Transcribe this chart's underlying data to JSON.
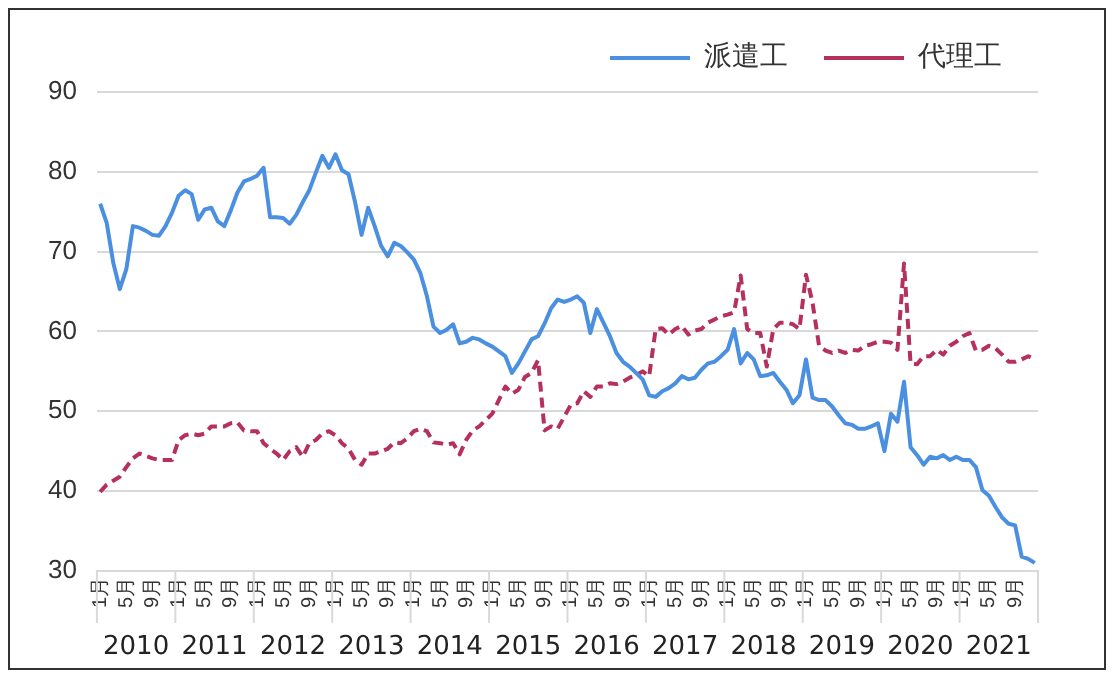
{
  "chart_data": {
    "type": "line",
    "categories": [
      "1月",
      null,
      null,
      null,
      "5月",
      null,
      null,
      null,
      "9月",
      null,
      null,
      null,
      "1月",
      null,
      null,
      null,
      "5月",
      null,
      null,
      null,
      "9月",
      null,
      null,
      null,
      "1月",
      null,
      null,
      null,
      "5月",
      null,
      null,
      null,
      "9月",
      null,
      null,
      null,
      "1月",
      null,
      null,
      null,
      "5月",
      null,
      null,
      null,
      "9月",
      null,
      null,
      null,
      "1月",
      null,
      null,
      null,
      "5月",
      null,
      null,
      null,
      "9月",
      null,
      null,
      null,
      "1月",
      null,
      null,
      null,
      "5月",
      null,
      null,
      null,
      "9月",
      null,
      null,
      null,
      "1月",
      null,
      null,
      null,
      "5月",
      null,
      null,
      null,
      "9月",
      null,
      null,
      null,
      "1月",
      null,
      null,
      null,
      "5月",
      null,
      null,
      null,
      "9月",
      null,
      null,
      null,
      "1月",
      null,
      null,
      null,
      "5月",
      null,
      null,
      null,
      "9月",
      null,
      null,
      null,
      "1月",
      null,
      null,
      null,
      "5月",
      null,
      null,
      null,
      "9月",
      null,
      null,
      null,
      "1月",
      null,
      null,
      null,
      "5月",
      null,
      null,
      null,
      "9月",
      null,
      null,
      null,
      "1月",
      null,
      null,
      null,
      "5月",
      null,
      null,
      null,
      "9月",
      null,
      null,
      null
    ],
    "series": [
      {
        "name": "派遣工",
        "color": "#4a8fe0",
        "line_style": "solid",
        "values": [
          76,
          73.6,
          68.6,
          65.3,
          67.8,
          73.2,
          73,
          72.6,
          72.1,
          72,
          73.2,
          74.9,
          77,
          77.7,
          77.2,
          74,
          75.3,
          75.5,
          73.8,
          73.2,
          75.2,
          77.4,
          78.8,
          79.1,
          79.5,
          80.5,
          74.3,
          74.3,
          74.2,
          73.5,
          74.6,
          76.2,
          77.7,
          79.9,
          82,
          80.5,
          82.2,
          80.2,
          79.7,
          76.2,
          72.1,
          75.5,
          73.2,
          70.7,
          69.4,
          71.1,
          70.7,
          69.9,
          69,
          67.3,
          64.4,
          60.6,
          59.8,
          60.2,
          60.9,
          58.5,
          58.7,
          59.2,
          59,
          58.5,
          58.1,
          57.5,
          56.9,
          54.8,
          56,
          57.5,
          59,
          59.4,
          61,
          62.9,
          64,
          63.7,
          64,
          64.4,
          63.6,
          59.8,
          62.8,
          61.1,
          59.4,
          57.3,
          56.2,
          55.6,
          54.8,
          54,
          52,
          51.8,
          52.5,
          52.9,
          53.5,
          54.4,
          54,
          54.2,
          55.2,
          56,
          56.2,
          56.9,
          57.7,
          60.3,
          56,
          57.3,
          56.5,
          54.4,
          54.5,
          54.8,
          53.7,
          52.7,
          51,
          52,
          56.5,
          51.7,
          51.4,
          51.4,
          50.6,
          49.5,
          48.5,
          48.3,
          47.8,
          47.8,
          48.1,
          48.5,
          45,
          49.7,
          48.7,
          53.7,
          45.5,
          44.5,
          43.3,
          44.3,
          44.1,
          44.5,
          43.9,
          44.3,
          43.9,
          43.9,
          43,
          40.1,
          39.4,
          38,
          36.7,
          35.9,
          35.7,
          31.8,
          31.5,
          31
        ]
      },
      {
        "name": "代理工",
        "color": "#b5305a",
        "line_style": "dashed",
        "values": [
          39.9,
          40.8,
          41.3,
          41.8,
          43,
          44.1,
          44.7,
          44.4,
          44.1,
          43.9,
          43.9,
          43.9,
          46.4,
          47,
          47.2,
          47,
          47.2,
          48.1,
          48.1,
          48.1,
          48.5,
          48.6,
          47.6,
          47.5,
          47.5,
          46,
          45.3,
          44.7,
          43.9,
          45,
          45.5,
          44.3,
          46,
          46.4,
          47.2,
          47.5,
          47,
          46,
          45.3,
          43.9,
          43.3,
          44.7,
          44.7,
          45,
          45.3,
          46.1,
          46,
          46.6,
          47.5,
          47.8,
          47.5,
          46.1,
          46,
          45.8,
          46,
          44.6,
          46.4,
          47.6,
          48.1,
          48.9,
          49.7,
          51.4,
          53.1,
          52.2,
          52.7,
          54.3,
          54.8,
          56.4,
          47.6,
          48.1,
          47.8,
          49.3,
          50.8,
          51,
          52.5,
          51.8,
          53.1,
          53.1,
          53.5,
          53.4,
          53.7,
          54.2,
          54.5,
          55,
          54.4,
          60.3,
          60.4,
          59.6,
          60.3,
          60.7,
          59.6,
          60.1,
          60.3,
          61.1,
          61.5,
          61.9,
          62.1,
          62.4,
          67,
          60.3,
          59.8,
          59.8,
          55.6,
          60.3,
          61.1,
          61.1,
          60.9,
          60.3,
          67.1,
          63.6,
          58.2,
          57.6,
          57.3,
          57.6,
          57.3,
          57.7,
          57.6,
          58.2,
          58.4,
          58.7,
          58.7,
          58.6,
          57.7,
          68.5,
          56,
          55.9,
          56.9,
          56.9,
          57.7,
          57.1,
          58.2,
          58.7,
          59.4,
          59.8,
          57.6,
          57.7,
          58.2,
          57.9,
          57.1,
          56.2,
          56.2,
          56.5,
          56.9,
          56.5
        ]
      }
    ],
    "ylim": [
      30,
      90
    ],
    "yticks": [
      30,
      40,
      50,
      60,
      70,
      80,
      90
    ],
    "grid": "y",
    "legend": "top right",
    "marker": "none",
    "annotations": [
      "2010",
      "2011",
      "2012",
      "2013",
      "2014",
      "2015",
      "2016",
      "2017",
      "2018",
      "2019",
      "2020",
      "2021"
    ]
  }
}
